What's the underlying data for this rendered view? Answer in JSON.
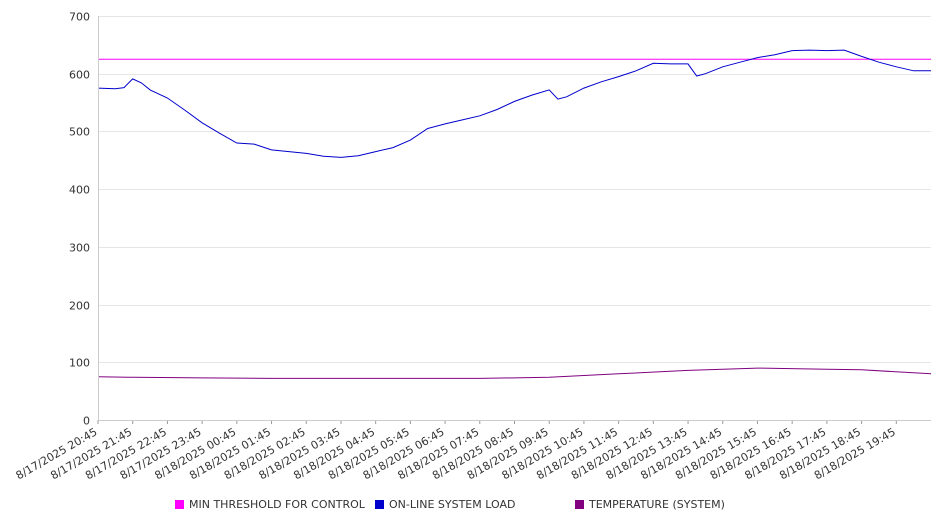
{
  "chart_data": {
    "type": "line",
    "title": "",
    "xlabel": "",
    "ylabel": "",
    "ylim": [
      0,
      700
    ],
    "yticks": [
      0,
      100,
      200,
      300,
      400,
      500,
      600,
      700
    ],
    "x_tick_labels": [
      "8/17/2025 20:45",
      "8/17/2025 21:45",
      "8/17/2025 22:45",
      "8/17/2025 23:45",
      "8/18/2025 00:45",
      "8/18/2025 01:45",
      "8/18/2025 02:45",
      "8/18/2025 03:45",
      "8/18/2025 04:45",
      "8/18/2025 05:45",
      "8/18/2025 06:45",
      "8/18/2025 07:45",
      "8/18/2025 08:45",
      "8/18/2025 09:45",
      "8/18/2025 10:45",
      "8/18/2025 11:45",
      "8/18/2025 12:45",
      "8/18/2025 13:45",
      "8/18/2025 14:45",
      "8/18/2025 15:45",
      "8/18/2025 16:45",
      "8/18/2025 17:45",
      "8/18/2025 18:45",
      "8/18/2025 19:45"
    ],
    "x_range": [
      "8/17/2025 20:45",
      "8/18/2025 20:45"
    ],
    "grid": true,
    "legend_position": "bottom",
    "series": [
      {
        "name": "MIN THRESHOLD FOR CONTROL",
        "color": "#ff00ff",
        "x": [
          "8/17/2025 20:45",
          "8/18/2025 20:45"
        ],
        "values": [
          625,
          625
        ]
      },
      {
        "name": "ON-LINE SYSTEM LOAD",
        "color": "#0000cc",
        "x": [
          "8/17/2025 20:45",
          "8/17/2025 21:15",
          "8/17/2025 21:30",
          "8/17/2025 21:45",
          "8/17/2025 22:00",
          "8/17/2025 22:15",
          "8/17/2025 22:45",
          "8/17/2025 23:15",
          "8/17/2025 23:45",
          "8/18/2025 00:15",
          "8/18/2025 00:45",
          "8/18/2025 01:15",
          "8/18/2025 01:45",
          "8/18/2025 02:15",
          "8/18/2025 02:45",
          "8/18/2025 03:15",
          "8/18/2025 03:45",
          "8/18/2025 04:15",
          "8/18/2025 04:45",
          "8/18/2025 05:15",
          "8/18/2025 05:45",
          "8/18/2025 06:15",
          "8/18/2025 06:45",
          "8/18/2025 07:15",
          "8/18/2025 07:45",
          "8/18/2025 08:15",
          "8/18/2025 08:45",
          "8/18/2025 09:15",
          "8/18/2025 09:45",
          "8/18/2025 10:00",
          "8/18/2025 10:15",
          "8/18/2025 10:45",
          "8/18/2025 11:15",
          "8/18/2025 11:45",
          "8/18/2025 12:15",
          "8/18/2025 12:45",
          "8/18/2025 13:15",
          "8/18/2025 13:45",
          "8/18/2025 14:00",
          "8/18/2025 14:15",
          "8/18/2025 14:45",
          "8/18/2025 15:15",
          "8/18/2025 15:45",
          "8/18/2025 16:15",
          "8/18/2025 16:45",
          "8/18/2025 17:15",
          "8/18/2025 17:45",
          "8/18/2025 18:15",
          "8/18/2025 18:45",
          "8/18/2025 19:15",
          "8/18/2025 19:45",
          "8/18/2025 20:15",
          "8/18/2025 20:45"
        ],
        "values": [
          575,
          574,
          576,
          591,
          584,
          572,
          558,
          537,
          515,
          497,
          480,
          478,
          468,
          465,
          462,
          457,
          455,
          458,
          465,
          472,
          485,
          505,
          513,
          520,
          527,
          538,
          552,
          563,
          572,
          556,
          560,
          575,
          586,
          595,
          605,
          618,
          617,
          617,
          596,
          600,
          612,
          620,
          628,
          633,
          640,
          641,
          640,
          641,
          630,
          620,
          612,
          605,
          605
        ]
      },
      {
        "name": "TEMPERATURE (SYSTEM)",
        "color": "#800080",
        "x": [
          "8/17/2025 20:45",
          "8/17/2025 21:45",
          "8/17/2025 23:45",
          "8/18/2025 01:45",
          "8/18/2025 03:45",
          "8/18/2025 05:45",
          "8/18/2025 07:45",
          "8/18/2025 09:45",
          "8/18/2025 11:45",
          "8/18/2025 13:45",
          "8/18/2025 15:45",
          "8/18/2025 17:45",
          "8/18/2025 18:45",
          "8/18/2025 20:45"
        ],
        "values": [
          75,
          74,
          73,
          72,
          72,
          72,
          72,
          74,
          80,
          86,
          90,
          88,
          87,
          80
        ]
      }
    ]
  }
}
